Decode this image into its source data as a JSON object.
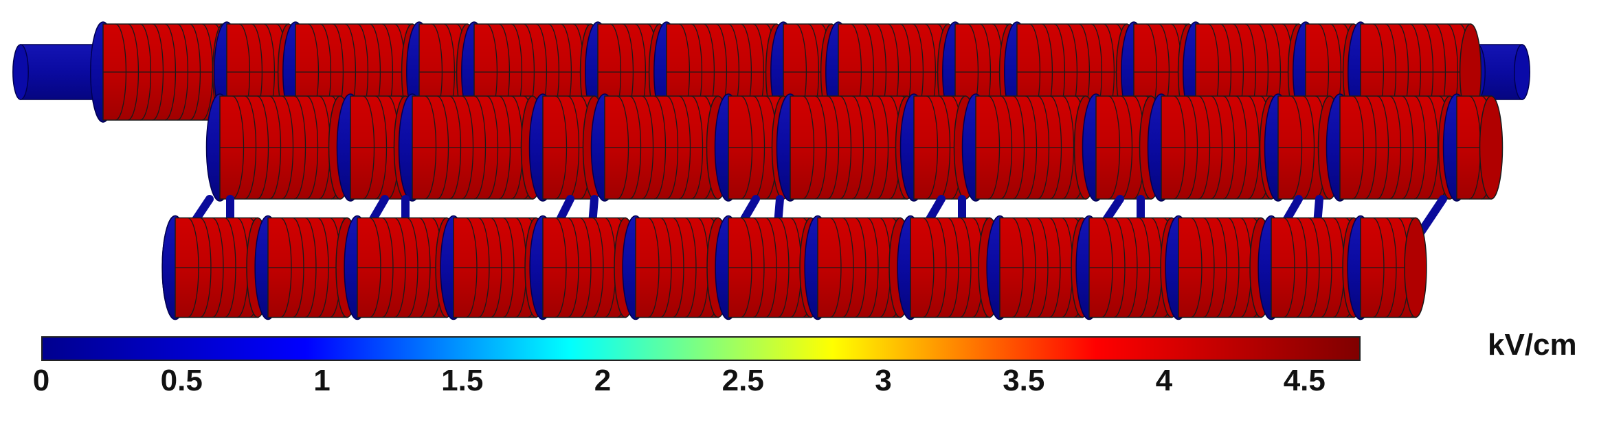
{
  "colorbar": {
    "unit": "kV/cm",
    "ticks": [
      "0",
      "0.5",
      "1",
      "1.5",
      "2",
      "2.5",
      "3",
      "3.5",
      "4",
      "4.5"
    ],
    "min": 0,
    "max": 4.7,
    "colormap": [
      "#00008f",
      "#0000ff",
      "#00ffff",
      "#ffff00",
      "#ff0000",
      "#800000"
    ]
  },
  "colors": {
    "rod": "#0a0a9a",
    "disc_fill": "#c00000",
    "disc_outline": "#1a1a1a"
  }
}
